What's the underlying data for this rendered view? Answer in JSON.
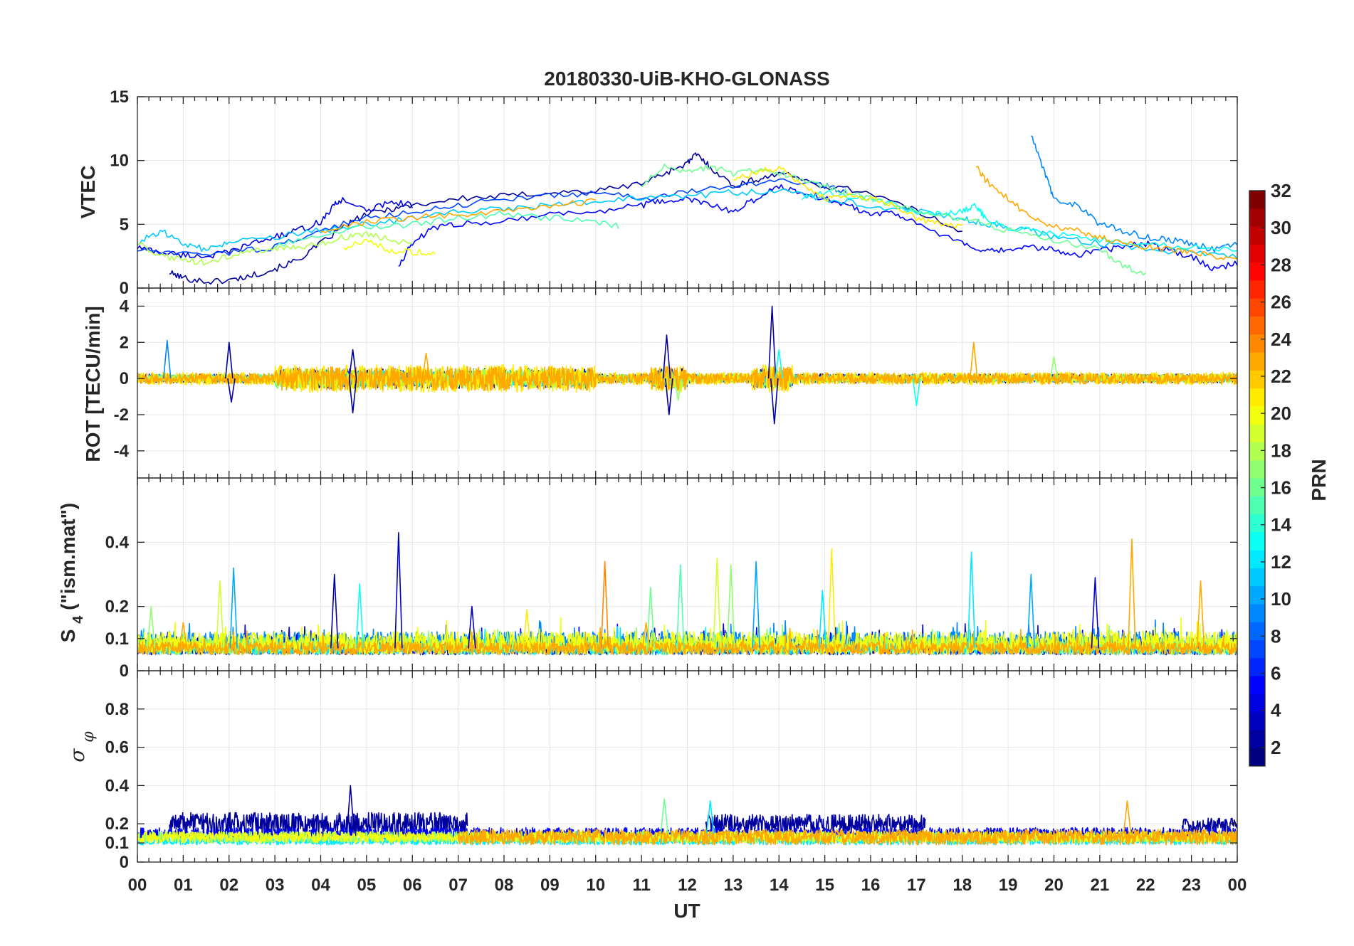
{
  "chart_data": {
    "type": "line",
    "title": "20180330-UiB-KHO-GLONASS",
    "xlabel": "UT",
    "x_tick_labels": [
      "00",
      "01",
      "02",
      "03",
      "04",
      "05",
      "06",
      "07",
      "08",
      "09",
      "10",
      "11",
      "12",
      "13",
      "14",
      "15",
      "16",
      "17",
      "18",
      "19",
      "20",
      "21",
      "22",
      "23",
      "00"
    ],
    "x_range_hours": [
      0,
      24
    ],
    "colorbar": {
      "label": "PRN",
      "range": [
        1,
        32
      ],
      "tick_labels": [
        "2",
        "4",
        "6",
        "8",
        "10",
        "12",
        "14",
        "16",
        "18",
        "20",
        "22",
        "24",
        "26",
        "28",
        "30",
        "32"
      ],
      "colormap": "jet"
    },
    "panels": [
      {
        "id": "vtec",
        "ylabel": "VTEC",
        "ylim": [
          0,
          15
        ],
        "yticks": [
          0,
          5,
          10,
          15
        ],
        "series": [
          {
            "prn": 2,
            "x": [
              0.7,
              1.0,
              1.5,
              2.0,
              2.5,
              3.0,
              3.5,
              4.0,
              4.5,
              5.0,
              5.5,
              6.0,
              7.0,
              8.0,
              9.0,
              10.0,
              11.0,
              11.5,
              12.0,
              12.2,
              12.5,
              13.0,
              13.5,
              14.0,
              15.0,
              16.0,
              17.0,
              18.0
            ],
            "y": [
              1.2,
              0.8,
              0.5,
              0.6,
              1.0,
              1.5,
              2.2,
              3.5,
              4.8,
              5.8,
              6.2,
              6.5,
              7.0,
              7.2,
              7.5,
              7.6,
              8.2,
              9.0,
              9.8,
              10.5,
              9.5,
              8.0,
              8.5,
              9.0,
              8.0,
              7.5,
              6.0,
              4.5
            ]
          },
          {
            "prn": 4,
            "x": [
              0.0,
              0.5,
              1.0,
              1.5,
              2.0,
              2.5,
              3.0,
              3.5,
              4.0,
              4.3,
              4.5,
              5.0,
              5.5,
              6.0
            ],
            "y": [
              3.2,
              2.8,
              2.6,
              2.5,
              2.8,
              3.5,
              4.0,
              4.5,
              5.2,
              6.5,
              7.0,
              6.0,
              6.8,
              6.5
            ]
          },
          {
            "prn": 5,
            "x": [
              5.7,
              6.0,
              6.5,
              7.0,
              8.0,
              9.0,
              10.0,
              11.0,
              11.5,
              12.0,
              12.5,
              13.0,
              13.5,
              14.0,
              14.5,
              15.0,
              15.5,
              16.0,
              16.5,
              17.0,
              18.0,
              18.5,
              19.0,
              19.5,
              20.0,
              20.5,
              21.0,
              21.5,
              22.0,
              22.5,
              23.0,
              23.5,
              24.0
            ],
            "y": [
              1.8,
              3.5,
              4.8,
              5.0,
              5.3,
              5.8,
              6.0,
              6.5,
              6.8,
              7.0,
              6.5,
              6.0,
              7.0,
              8.0,
              7.5,
              7.0,
              6.5,
              5.8,
              6.0,
              5.0,
              3.5,
              2.8,
              3.0,
              3.2,
              3.0,
              2.6,
              3.0,
              3.2,
              3.5,
              3.0,
              2.5,
              1.5,
              2.0
            ]
          },
          {
            "prn": 7,
            "x": [
              0.0,
              1.0,
              2.0,
              3.0,
              4.0,
              5.0,
              6.0,
              7.0,
              8.0,
              9.0,
              10.0,
              11.0,
              12.0,
              13.0,
              14.0,
              15.0,
              15.5
            ],
            "y": [
              3.0,
              2.6,
              2.8,
              3.2,
              4.5,
              5.5,
              6.0,
              6.5,
              7.0,
              7.2,
              7.5,
              7.0,
              7.5,
              8.0,
              8.5,
              8.0,
              7.5
            ]
          },
          {
            "prn": 9,
            "x": [
              19.5,
              19.8,
              20.0,
              20.5,
              21.0,
              21.5,
              22.0,
              22.5,
              23.0,
              23.5,
              24.0
            ],
            "y": [
              12.0,
              9.0,
              7.0,
              6.5,
              5.0,
              4.5,
              4.0,
              3.8,
              3.5,
              3.0,
              3.5
            ]
          },
          {
            "prn": 11,
            "x": [
              0.0,
              0.5,
              1.0,
              1.5,
              2.0,
              3.0,
              4.0,
              5.0,
              6.0,
              7.0,
              8.0,
              9.0,
              10.0,
              11.0,
              12.0,
              13.0,
              14.0,
              15.0,
              16.0,
              17.0,
              18.0,
              18.5,
              19.0,
              19.5,
              20.0,
              21.0,
              22.0,
              23.0,
              24.0
            ],
            "y": [
              3.5,
              4.5,
              3.5,
              3.0,
              3.5,
              4.0,
              4.5,
              5.0,
              5.5,
              6.0,
              6.2,
              6.5,
              6.8,
              7.0,
              7.2,
              7.5,
              7.6,
              7.0,
              6.5,
              6.0,
              5.5,
              5.0,
              4.8,
              4.5,
              4.0,
              3.5,
              3.0,
              2.8,
              2.5
            ]
          },
          {
            "prn": 13,
            "x": [
              14.5,
              15.0,
              16.0,
              17.0,
              17.5,
              18.0,
              18.3,
              18.5,
              19.0,
              20.0,
              21.0,
              22.0,
              23.0,
              24.0
            ],
            "y": [
              7.0,
              7.5,
              7.0,
              6.0,
              5.8,
              6.0,
              6.5,
              5.5,
              4.8,
              4.2,
              3.8,
              3.5,
              3.2,
              3.0
            ]
          },
          {
            "prn": 15,
            "x": [
              3.0,
              4.0,
              5.0,
              6.0,
              7.0,
              8.0,
              9.0,
              10.0,
              10.5
            ],
            "y": [
              3.2,
              4.2,
              4.8,
              5.0,
              5.5,
              5.8,
              5.5,
              5.2,
              4.8
            ]
          },
          {
            "prn": 16,
            "x": [
              11.0,
              11.5,
              12.0,
              12.5,
              13.0,
              13.5,
              14.0,
              14.5,
              15.0,
              15.5,
              16.0,
              16.5,
              17.0,
              18.0,
              19.0,
              20.0,
              21.0,
              21.5,
              22.0
            ],
            "y": [
              8.0,
              9.5,
              9.0,
              9.5,
              9.0,
              9.2,
              9.0,
              8.5,
              8.0,
              7.5,
              7.0,
              6.5,
              6.0,
              5.5,
              4.5,
              3.8,
              3.0,
              1.8,
              1.0
            ]
          },
          {
            "prn": 18,
            "x": [
              0.0,
              0.5,
              1.0,
              1.5,
              2.0,
              2.5,
              3.0,
              3.5,
              4.0,
              4.5,
              5.0,
              5.5,
              6.0
            ],
            "y": [
              3.5,
              2.5,
              2.2,
              2.0,
              2.5,
              3.0,
              3.0,
              3.2,
              3.5,
              4.0,
              4.2,
              3.8,
              3.5
            ]
          },
          {
            "prn": 20,
            "x": [
              4.5,
              5.0,
              5.5,
              6.0,
              6.5
            ],
            "y": [
              3.2,
              3.8,
              3.0,
              2.8,
              2.8
            ]
          },
          {
            "prn": 21,
            "x": [
              13.0,
              13.5,
              14.0,
              14.5,
              15.0,
              15.5,
              16.0,
              16.5,
              17.0,
              17.5,
              18.0
            ],
            "y": [
              8.5,
              9.0,
              9.5,
              8.0,
              7.0,
              7.2,
              7.0,
              6.5,
              5.5,
              5.0,
              4.8
            ]
          },
          {
            "prn": 23,
            "x": [
              18.3,
              18.5,
              19.0,
              19.5,
              20.0,
              20.5,
              21.0,
              21.5,
              22.0,
              22.5,
              23.0,
              23.5,
              24.0
            ],
            "y": [
              9.5,
              8.5,
              7.0,
              5.5,
              4.8,
              4.5,
              4.0,
              3.5,
              3.2,
              3.0,
              2.8,
              2.5,
              2.2
            ]
          },
          {
            "prn": 23,
            "x": [
              4.0,
              5.0,
              6.0,
              7.0,
              8.0,
              9.0,
              10.0
            ],
            "y": [
              4.5,
              5.2,
              5.5,
              5.8,
              6.0,
              6.5,
              6.8
            ]
          }
        ]
      },
      {
        "id": "rot",
        "ylabel": "ROT [TECU/min]",
        "ylim": [
          -5.5,
          5
        ],
        "yticks": [
          -4,
          -2,
          0,
          2,
          4
        ],
        "noise_bands": [
          {
            "prn": 2,
            "amp": 0.25
          },
          {
            "prn": 7,
            "amp": 0.2
          },
          {
            "prn": 12,
            "amp": 0.2
          },
          {
            "prn": 17,
            "amp": 0.25
          },
          {
            "prn": 21,
            "amp": 0.35
          },
          {
            "prn": 23,
            "amp": 0.3
          }
        ],
        "spikes": [
          {
            "prn": 9,
            "t": 0.65,
            "v": 2.1
          },
          {
            "prn": 2,
            "t": 2.0,
            "v": 2.0
          },
          {
            "prn": 2,
            "t": 2.05,
            "v": -1.3
          },
          {
            "prn": 2,
            "t": 4.7,
            "v": -1.9
          },
          {
            "prn": 2,
            "t": 4.7,
            "v": 1.6
          },
          {
            "prn": 23,
            "t": 6.3,
            "v": 1.4
          },
          {
            "prn": 2,
            "t": 11.55,
            "v": 2.4
          },
          {
            "prn": 2,
            "t": 11.6,
            "v": -2.0
          },
          {
            "prn": 17,
            "t": 11.8,
            "v": -1.2
          },
          {
            "prn": 2,
            "t": 13.85,
            "v": 4.0
          },
          {
            "prn": 2,
            "t": 13.9,
            "v": -2.5
          },
          {
            "prn": 13,
            "t": 14.0,
            "v": 1.6
          },
          {
            "prn": 23,
            "t": 18.25,
            "v": 2.0
          },
          {
            "prn": 13,
            "t": 17.0,
            "v": -1.5
          },
          {
            "prn": 17,
            "t": 20.0,
            "v": 1.2
          }
        ]
      },
      {
        "id": "s4",
        "ylabel": "S4 (\"ism.mat\")",
        "ylim": [
          0,
          0.6
        ],
        "yticks": [
          0,
          0.1,
          0.2,
          0.4
        ],
        "baseline": 0.05,
        "spikes": [
          {
            "prn": 3,
            "t": 5.7,
            "v": 0.43
          },
          {
            "prn": 23,
            "t": 21.7,
            "v": 0.41
          },
          {
            "prn": 21,
            "t": 15.15,
            "v": 0.38
          },
          {
            "prn": 12,
            "t": 18.2,
            "v": 0.37
          },
          {
            "prn": 19,
            "t": 12.65,
            "v": 0.35
          },
          {
            "prn": 10,
            "t": 13.5,
            "v": 0.34
          },
          {
            "prn": 24,
            "t": 10.2,
            "v": 0.34
          },
          {
            "prn": 10,
            "t": 2.1,
            "v": 0.32
          },
          {
            "prn": 15,
            "t": 11.85,
            "v": 0.33
          },
          {
            "prn": 17,
            "t": 12.95,
            "v": 0.33
          },
          {
            "prn": 2,
            "t": 4.3,
            "v": 0.3
          },
          {
            "prn": 19,
            "t": 1.8,
            "v": 0.28
          },
          {
            "prn": 13,
            "t": 4.85,
            "v": 0.27
          },
          {
            "prn": 23,
            "t": 23.2,
            "v": 0.28
          },
          {
            "prn": 16,
            "t": 11.2,
            "v": 0.26
          },
          {
            "prn": 10,
            "t": 19.5,
            "v": 0.3
          },
          {
            "prn": 4,
            "t": 20.9,
            "v": 0.29
          },
          {
            "prn": 17,
            "t": 0.3,
            "v": 0.2
          },
          {
            "prn": 3,
            "t": 7.3,
            "v": 0.2
          },
          {
            "prn": 21,
            "t": 8.5,
            "v": 0.19
          },
          {
            "prn": 12,
            "t": 14.95,
            "v": 0.25
          },
          {
            "prn": 23,
            "t": 1.0,
            "v": 0.15
          },
          {
            "prn": 23,
            "t": 11.1,
            "v": 0.15
          }
        ]
      },
      {
        "id": "sigma_phi",
        "ylabel": "σφ",
        "ylim": [
          0,
          1
        ],
        "yticks": [
          0,
          0.1,
          0.2,
          0.4,
          0.6,
          0.8
        ],
        "noise_bands": [
          {
            "prn": 2,
            "base": 0.2,
            "amp": 0.06,
            "t0": 0.7,
            "t1": 7.2
          },
          {
            "prn": 2,
            "base": 0.2,
            "amp": 0.05,
            "t0": 12.4,
            "t1": 17.2
          },
          {
            "prn": 2,
            "base": 0.19,
            "amp": 0.04,
            "t0": 22.8,
            "t1": 24.0
          },
          {
            "prn": 5,
            "base": 0.15,
            "amp": 0.03,
            "t0": 0.0,
            "t1": 24.0
          },
          {
            "prn": 12,
            "base": 0.11,
            "amp": 0.02,
            "t0": 0.0,
            "t1": 24.0
          },
          {
            "prn": 17,
            "base": 0.13,
            "amp": 0.03,
            "t0": 0.0,
            "t1": 24.0
          },
          {
            "prn": 20,
            "base": 0.13,
            "amp": 0.03,
            "t0": 0.0,
            "t1": 24.0
          },
          {
            "prn": 23,
            "base": 0.13,
            "amp": 0.04,
            "t0": 7.0,
            "t1": 24.0
          }
        ],
        "spikes": [
          {
            "prn": 2,
            "t": 4.65,
            "v": 0.4
          },
          {
            "prn": 16,
            "t": 11.5,
            "v": 0.33
          },
          {
            "prn": 12,
            "t": 12.5,
            "v": 0.32
          },
          {
            "prn": 23,
            "t": 21.6,
            "v": 0.32
          }
        ]
      }
    ]
  }
}
